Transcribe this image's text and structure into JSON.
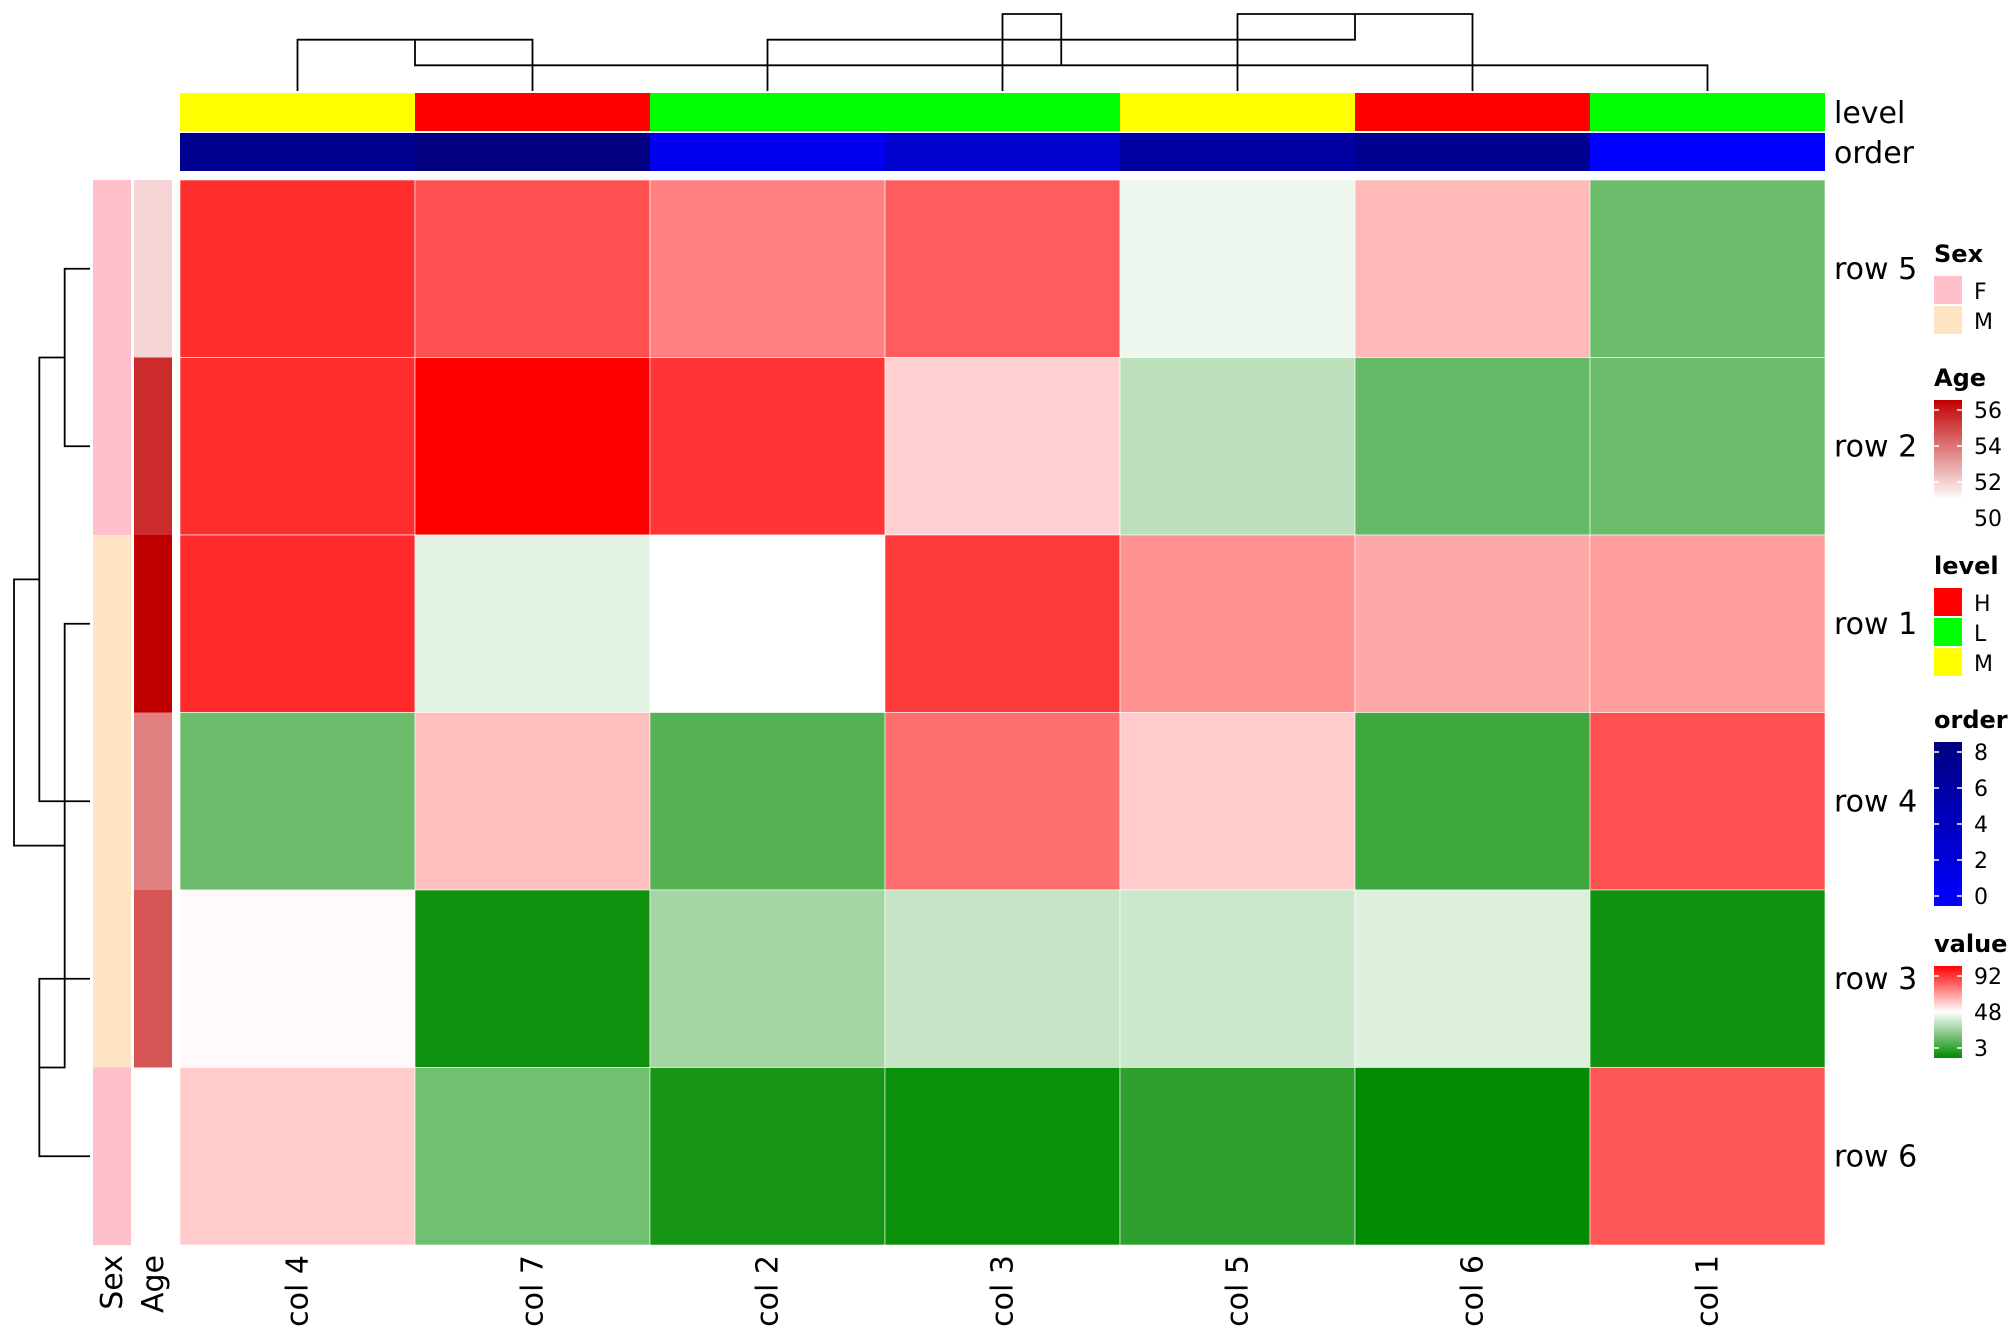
{
  "chart_data": {
    "type": "heatmap",
    "columns": [
      "col 4",
      "col 7",
      "col 2",
      "col 3",
      "col 5",
      "col 6",
      "col 1"
    ],
    "rows": [
      "row 5",
      "row 2",
      "row 1",
      "row 4",
      "row 3",
      "row 6"
    ],
    "values": [
      [
        84,
        78,
        70,
        76,
        45,
        60,
        22
      ],
      [
        84,
        92,
        83,
        56,
        36,
        21,
        22
      ],
      [
        85,
        43,
        48,
        82,
        67,
        63,
        65
      ],
      [
        22,
        59,
        18,
        73,
        57,
        14,
        78
      ],
      [
        49,
        6,
        32,
        38,
        39,
        42,
        6
      ],
      [
        57,
        23,
        7,
        5,
        11,
        3,
        77
      ]
    ],
    "col_annotations": {
      "level": [
        "M",
        "H",
        "L",
        "L",
        "M",
        "H",
        "L"
      ],
      "order": [
        7,
        8,
        1,
        3,
        6,
        7,
        0
      ]
    },
    "row_annotations": {
      "Sex": [
        "F",
        "F",
        "M",
        "M",
        "M",
        "F"
      ],
      "Age": [
        51,
        55,
        56,
        53,
        54,
        null
      ]
    },
    "row_labels_annotation": [
      "Sex",
      "Age"
    ],
    "col_labels_annotation": [
      "level",
      "order"
    ],
    "legends": [
      {
        "title": "Sex",
        "type": "discrete",
        "items": [
          {
            "label": "F",
            "color": "#FFC0CB"
          },
          {
            "label": "M",
            "color": "#FFE4C4"
          }
        ]
      },
      {
        "title": "Age",
        "type": "continuous",
        "ticks": [
          "56",
          "54",
          "52",
          "50"
        ],
        "colors": [
          "#C00000",
          "#FFFFFF"
        ]
      },
      {
        "title": "level",
        "type": "discrete",
        "items": [
          {
            "label": "H",
            "color": "#FF0000"
          },
          {
            "label": "L",
            "color": "#00FF00"
          },
          {
            "label": "M",
            "color": "#FFFF00"
          }
        ]
      },
      {
        "title": "order",
        "type": "continuous",
        "ticks": [
          "8",
          "6",
          "4",
          "2",
          "0"
        ],
        "colors": [
          "#000080",
          "#0000FF"
        ]
      },
      {
        "title": "value",
        "type": "continuous",
        "ticks": [
          "92",
          "48",
          "3"
        ],
        "colors": [
          "#FF0000",
          "#FFFFFF",
          "#008B00"
        ]
      }
    ],
    "value_color_scale": {
      "low": 3,
      "mid": 48,
      "high": 92,
      "low_color": "#008B00",
      "mid_color": "#FFFFFF",
      "high_color": "#FF0000"
    },
    "age_color_scale": {
      "low": 50,
      "high": 56,
      "low_color": "#FFFFFF",
      "high_color": "#C00000"
    },
    "order_color_scale": {
      "low": 0,
      "high": 8,
      "low_color": "#0000FF",
      "high_color": "#000080"
    },
    "level_colors": {
      "H": "#FF0000",
      "L": "#00FF00",
      "M": "#FFFF00"
    },
    "sex_colors": {
      "F": "#FFC0CB",
      "M": "#FFE4C4"
    },
    "col_dendrogram": [
      [
        0,
        1,
        2
      ],
      [
        4,
        5,
        3
      ],
      [
        6,
        7,
        1
      ],
      [
        2,
        8,
        2
      ],
      [
        3,
        9,
        3
      ]
    ],
    "row_dendrogram": [
      [
        0,
        1,
        1
      ],
      [
        4,
        5,
        2
      ],
      [
        3,
        6,
        2
      ],
      [
        2,
        7,
        1
      ],
      [
        8,
        9,
        3
      ]
    ]
  }
}
